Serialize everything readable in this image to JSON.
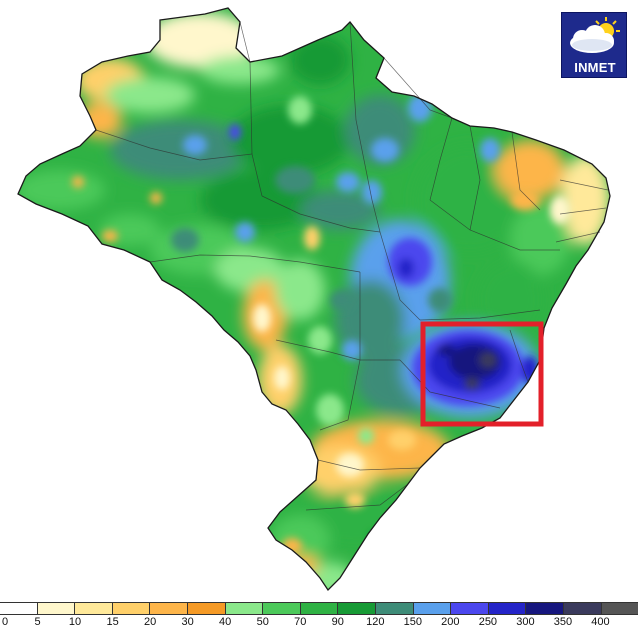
{
  "logo": {
    "text": "INMET"
  },
  "legend": {
    "labels": [
      "0",
      "5",
      "10",
      "15",
      "20",
      "30",
      "40",
      "50",
      "70",
      "90",
      "120",
      "150",
      "200",
      "250",
      "300",
      "350",
      "400"
    ],
    "colors": [
      "#ffffff",
      "#fff7cc",
      "#ffe99a",
      "#ffd06a",
      "#fdb54a",
      "#f59a26",
      "#8be88b",
      "#4cc95a",
      "#2fb244",
      "#179a35",
      "#3e8c78",
      "#5aa0ec",
      "#4b47ee",
      "#2424c8",
      "#16167e",
      "#3a3a5c",
      "#555555"
    ]
  },
  "highlight": {
    "color": "#e3202a"
  }
}
